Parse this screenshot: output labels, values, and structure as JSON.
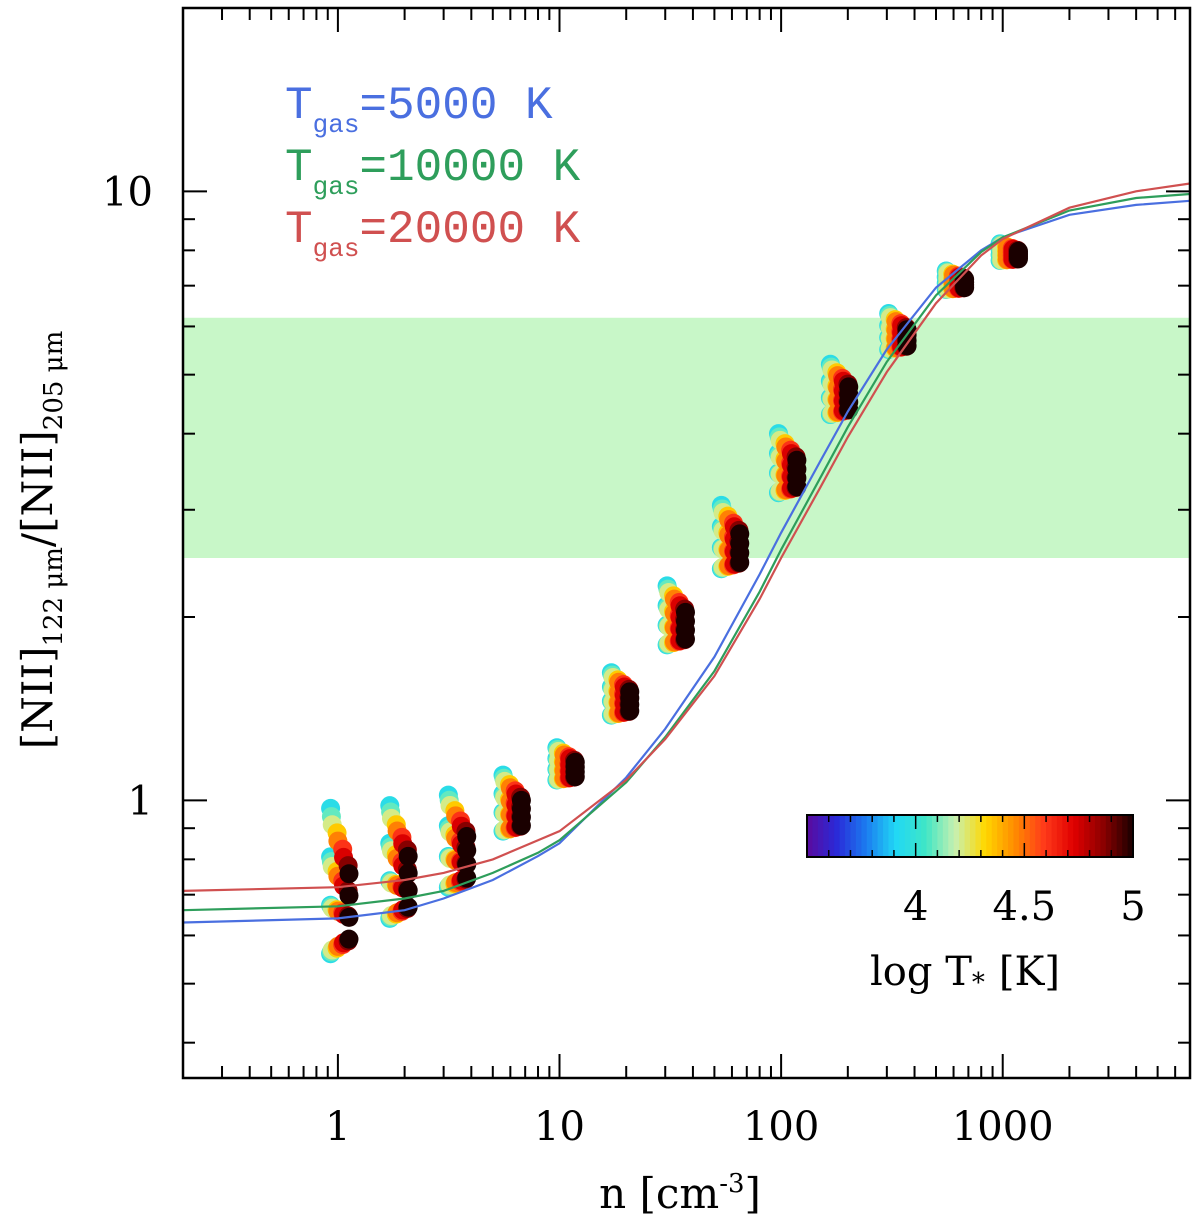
{
  "chart_data": {
    "type": "scatter",
    "xscale": "log",
    "yscale": "log",
    "xlim": [
      0.2,
      7000
    ],
    "ylim": [
      0.35,
      20
    ],
    "xlabel": {
      "base": "n  [cm",
      "sup": "-3",
      "tail": "]"
    },
    "ylabel": {
      "p1": "[NII]",
      "s1": "122 μm",
      "p2": "/[NII]",
      "s2": "205 μm"
    },
    "x_ticks": [
      {
        "value": 1,
        "label": "1"
      },
      {
        "value": 10,
        "label": "10"
      },
      {
        "value": 100,
        "label": "100"
      },
      {
        "value": 1000,
        "label": "1000"
      }
    ],
    "y_ticks": [
      {
        "value": 1,
        "label": "1"
      },
      {
        "value": 10,
        "label": "10"
      }
    ],
    "shaded_band": {
      "ymin": 2.5,
      "ymax": 6.2,
      "color": "#c8f7c8"
    },
    "curves": [
      {
        "name": "T",
        "subscript": "gas",
        "suffix": "=5000 K",
        "color": "#4a6fe0",
        "points": [
          [
            0.2,
            0.63
          ],
          [
            1,
            0.64
          ],
          [
            2,
            0.66
          ],
          [
            3,
            0.69
          ],
          [
            5,
            0.74
          ],
          [
            8,
            0.81
          ],
          [
            10,
            0.85
          ],
          [
            20,
            1.09
          ],
          [
            30,
            1.31
          ],
          [
            50,
            1.72
          ],
          [
            80,
            2.35
          ],
          [
            100,
            2.75
          ],
          [
            150,
            3.6
          ],
          [
            200,
            4.35
          ],
          [
            300,
            5.5
          ],
          [
            500,
            6.95
          ],
          [
            800,
            8.0
          ],
          [
            1000,
            8.4
          ],
          [
            2000,
            9.15
          ],
          [
            4000,
            9.5
          ],
          [
            7000,
            9.65
          ]
        ]
      },
      {
        "name": "T",
        "subscript": "gas",
        "suffix": "=10000 K",
        "color": "#2e9e5b",
        "points": [
          [
            0.2,
            0.66
          ],
          [
            1,
            0.67
          ],
          [
            2,
            0.69
          ],
          [
            3,
            0.71
          ],
          [
            5,
            0.76
          ],
          [
            8,
            0.82
          ],
          [
            10,
            0.86
          ],
          [
            20,
            1.07
          ],
          [
            30,
            1.27
          ],
          [
            50,
            1.63
          ],
          [
            80,
            2.2
          ],
          [
            100,
            2.58
          ],
          [
            150,
            3.38
          ],
          [
            200,
            4.1
          ],
          [
            300,
            5.25
          ],
          [
            500,
            6.75
          ],
          [
            800,
            7.95
          ],
          [
            1000,
            8.4
          ],
          [
            2000,
            9.3
          ],
          [
            4000,
            9.75
          ],
          [
            7000,
            9.9
          ]
        ]
      },
      {
        "name": "T",
        "subscript": "gas",
        "suffix": "=20000 K",
        "color": "#d05050",
        "points": [
          [
            0.2,
            0.71
          ],
          [
            1,
            0.72
          ],
          [
            2,
            0.74
          ],
          [
            3,
            0.76
          ],
          [
            5,
            0.8
          ],
          [
            8,
            0.86
          ],
          [
            10,
            0.89
          ],
          [
            20,
            1.08
          ],
          [
            30,
            1.26
          ],
          [
            50,
            1.6
          ],
          [
            80,
            2.14
          ],
          [
            100,
            2.5
          ],
          [
            150,
            3.26
          ],
          [
            200,
            3.95
          ],
          [
            300,
            5.05
          ],
          [
            500,
            6.55
          ],
          [
            800,
            7.85
          ],
          [
            1000,
            8.35
          ],
          [
            2000,
            9.4
          ],
          [
            4000,
            10.0
          ],
          [
            7000,
            10.3
          ]
        ]
      }
    ],
    "scatter_groups": [
      {
        "n": 1.0,
        "ylo": 0.56,
        "yhi": 0.97
      },
      {
        "n": 1.85,
        "ylo": 0.64,
        "yhi": 0.98
      },
      {
        "n": 3.4,
        "ylo": 0.72,
        "yhi": 1.02
      },
      {
        "n": 6.0,
        "ylo": 0.89,
        "yhi": 1.1
      },
      {
        "n": 10.5,
        "ylo": 1.08,
        "yhi": 1.22
      },
      {
        "n": 18.5,
        "ylo": 1.38,
        "yhi": 1.62
      },
      {
        "n": 33.0,
        "ylo": 1.8,
        "yhi": 2.25
      },
      {
        "n": 58.0,
        "ylo": 2.4,
        "yhi": 3.05
      },
      {
        "n": 105.0,
        "ylo": 3.2,
        "yhi": 4.0
      },
      {
        "n": 180.0,
        "ylo": 4.3,
        "yhi": 5.2
      },
      {
        "n": 330.0,
        "ylo": 5.5,
        "yhi": 6.3
      },
      {
        "n": 600.0,
        "ylo": 6.9,
        "yhi": 7.4
      },
      {
        "n": 1050.0,
        "ylo": 7.7,
        "yhi": 8.2
      }
    ],
    "colorbar": {
      "label": "log T",
      "label_sub": "*",
      "label_unit": "[K]",
      "min": 4,
      "max": 5,
      "ticks": [
        {
          "value": 4,
          "label": "4"
        },
        {
          "value": 4.5,
          "label": "4.5"
        },
        {
          "value": 5,
          "label": "5"
        }
      ],
      "colors": [
        "#5a0a9e",
        "#2a2ad8",
        "#1b7cf0",
        "#21d8f5",
        "#3fe6c6",
        "#c8f0b0",
        "#ffd800",
        "#ff8c00",
        "#ff3a1a",
        "#e00000",
        "#8b0000",
        "#1a0000"
      ]
    }
  }
}
